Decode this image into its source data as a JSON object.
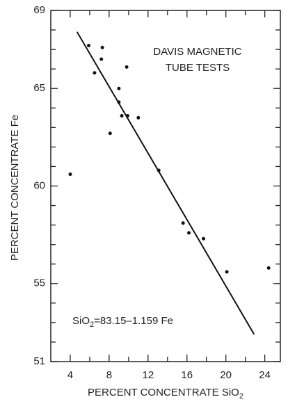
{
  "chart_data": {
    "type": "scatter",
    "annotation": [
      "DAVIS MAGNETIC",
      "TUBE TESTS"
    ],
    "equation": [
      "SiO",
      "2",
      "=83.15–1.159 Fe"
    ],
    "xlabel": [
      "PERCENT CONCENTRATE SiO",
      "2"
    ],
    "ylabel": "PERCENT CONCENTRATE Fe",
    "xlim": [
      2,
      25.6
    ],
    "ylim": [
      51,
      69
    ],
    "xticks": [
      4,
      8,
      12,
      16,
      20,
      24
    ],
    "yticks": [
      51,
      55,
      60,
      65,
      69
    ],
    "xminorticks": [
      6,
      10,
      14,
      18,
      22
    ],
    "yminorticks": [
      52,
      53,
      54,
      56,
      57,
      58,
      59,
      61,
      62,
      63,
      64,
      66,
      67,
      68
    ],
    "color": "#111111",
    "x": [
      5.9,
      7.3,
      7.2,
      6.5,
      9.8,
      9.0,
      9.0,
      9.3,
      9.9,
      11.0,
      8.1,
      4.0,
      13.1,
      15.6,
      16.2,
      17.7,
      20.1,
      24.4
    ],
    "values": [
      67.2,
      67.1,
      66.5,
      65.8,
      66.1,
      65.0,
      64.3,
      63.6,
      63.6,
      63.5,
      62.7,
      60.6,
      60.8,
      58.1,
      57.6,
      57.3,
      55.6,
      55.8
    ],
    "fit_line": {
      "x": [
        4.7,
        22.9
      ],
      "y": [
        67.9,
        52.4
      ]
    }
  }
}
